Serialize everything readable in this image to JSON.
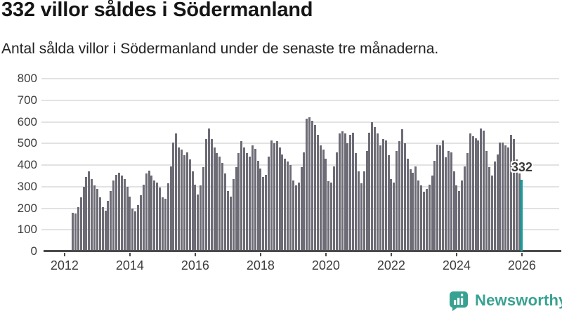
{
  "header": {
    "title": "332 villor såldes i Södermanland",
    "subtitle": "Antal sålda villor i Södermanland under de senaste tre månaderna."
  },
  "chart_data": {
    "type": "bar",
    "title": "332 villor såldes i Södermanland",
    "subtitle": "Antal sålda villor i Södermanland under de senaste tre månaderna.",
    "unit": "sålda villor (rullande 3 månader)",
    "frequency": "monthly",
    "x_start": "2012-04",
    "x_end": "2026-01",
    "values": [
      180,
      175,
      205,
      250,
      300,
      345,
      370,
      335,
      305,
      290,
      250,
      205,
      190,
      235,
      280,
      330,
      355,
      365,
      350,
      335,
      300,
      255,
      200,
      185,
      215,
      260,
      310,
      360,
      375,
      350,
      330,
      320,
      295,
      250,
      245,
      315,
      395,
      505,
      545,
      480,
      470,
      445,
      460,
      425,
      370,
      310,
      265,
      305,
      390,
      520,
      570,
      520,
      480,
      455,
      440,
      410,
      360,
      280,
      255,
      335,
      390,
      455,
      510,
      480,
      455,
      440,
      490,
      475,
      420,
      385,
      345,
      355,
      440,
      515,
      500,
      510,
      480,
      450,
      430,
      415,
      400,
      330,
      305,
      320,
      390,
      460,
      615,
      620,
      605,
      585,
      540,
      490,
      470,
      430,
      325,
      320,
      395,
      460,
      545,
      555,
      545,
      500,
      540,
      550,
      455,
      370,
      315,
      370,
      465,
      550,
      600,
      575,
      545,
      490,
      520,
      515,
      445,
      335,
      320,
      465,
      510,
      565,
      500,
      430,
      380,
      365,
      395,
      330,
      305,
      275,
      290,
      310,
      350,
      420,
      495,
      490,
      515,
      435,
      465,
      460,
      370,
      305,
      280,
      330,
      395,
      455,
      545,
      535,
      525,
      515,
      570,
      560,
      465,
      390,
      350,
      415,
      450,
      505,
      505,
      490,
      480,
      540,
      520,
      425,
      360,
      332
    ],
    "highlight": {
      "index": 165,
      "value": 332,
      "label": "332",
      "color": "#0ea3a0"
    },
    "bar_color": "#6d6c76",
    "ylim": [
      0,
      800
    ],
    "yticks": [
      0,
      100,
      200,
      300,
      400,
      500,
      600,
      700,
      800
    ],
    "xtick_years": [
      2012,
      2014,
      2016,
      2018,
      2020,
      2022,
      2024,
      2026
    ],
    "grid": "horizontal",
    "legend": "none"
  },
  "footer": {
    "brand": "Newsworthy",
    "brand_color": "#38a292",
    "logo_icon": "bar-chart-speech-bubble-icon"
  }
}
